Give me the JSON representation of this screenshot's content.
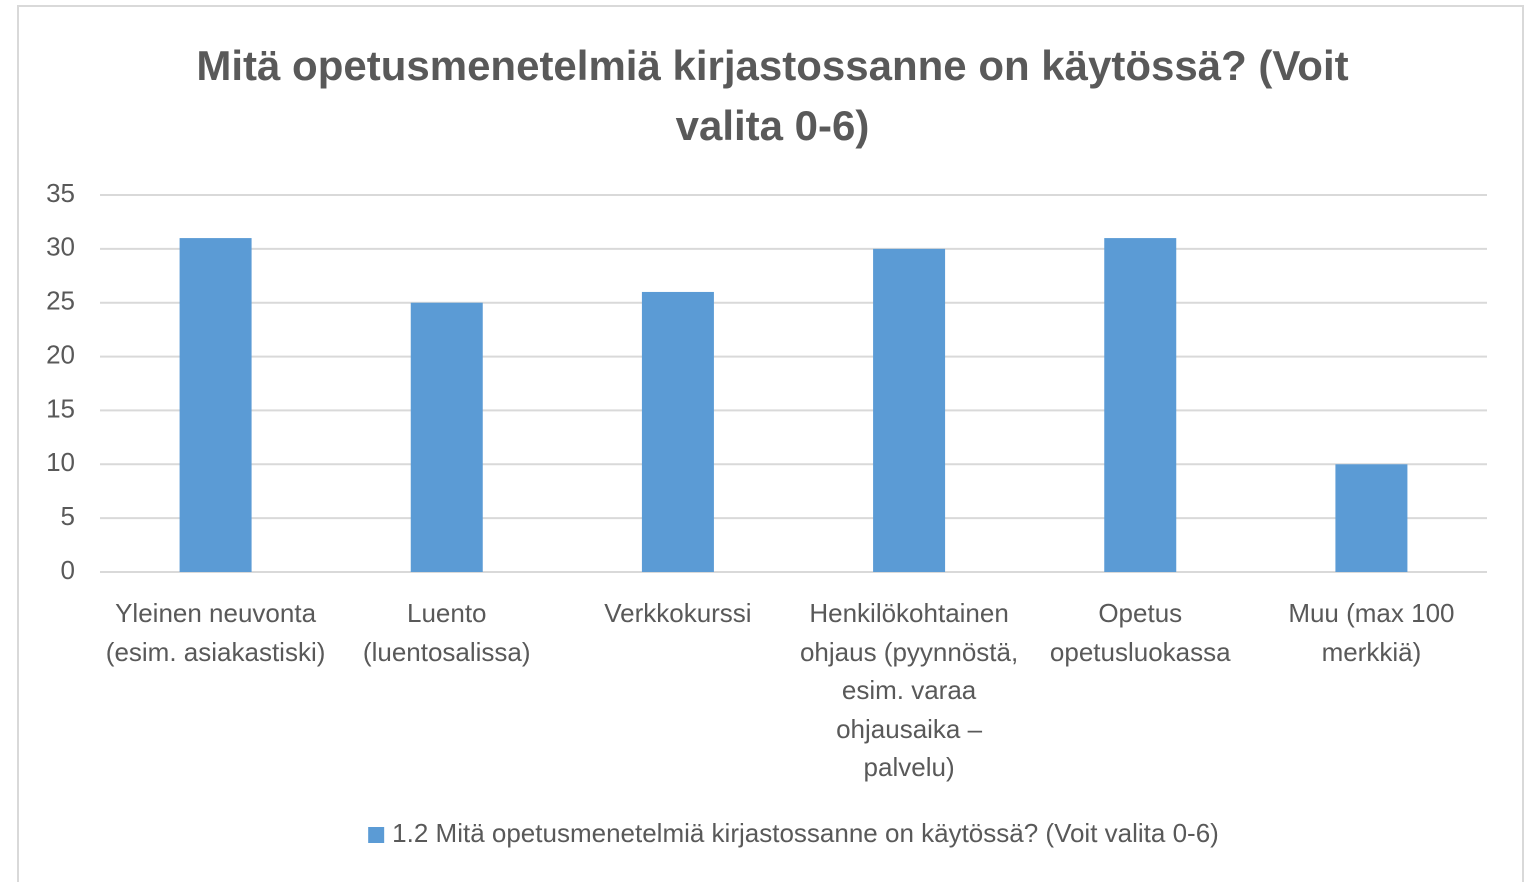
{
  "chart_data": {
    "type": "bar",
    "title": "Mitä opetusmenetelmiä kirjastossanne on käytössä? (Voit valita 0-6)",
    "categories": [
      "Yleinen neuvonta (esim. asiakastiski)",
      "Luento (luentosalissa)",
      "Verkkokurssi",
      "Henkilökohtainen ohjaus (pyynnöstä, esim. varaa ohjausaika –palvelu)",
      "Opetus opetusluokassa",
      "Muu  (max 100 merkkiä)"
    ],
    "series": [
      {
        "name": "1.2 Mitä opetusmenetelmiä kirjastossanne on käytössä? (Voit valita 0-6)",
        "color": "#5b9bd5",
        "values": [
          31,
          25,
          26,
          30,
          31,
          10
        ]
      }
    ],
    "ylim": [
      0,
      35
    ],
    "yticks": [
      0,
      5,
      10,
      15,
      20,
      25,
      30,
      35
    ],
    "grid": true,
    "legend": "bottom"
  }
}
